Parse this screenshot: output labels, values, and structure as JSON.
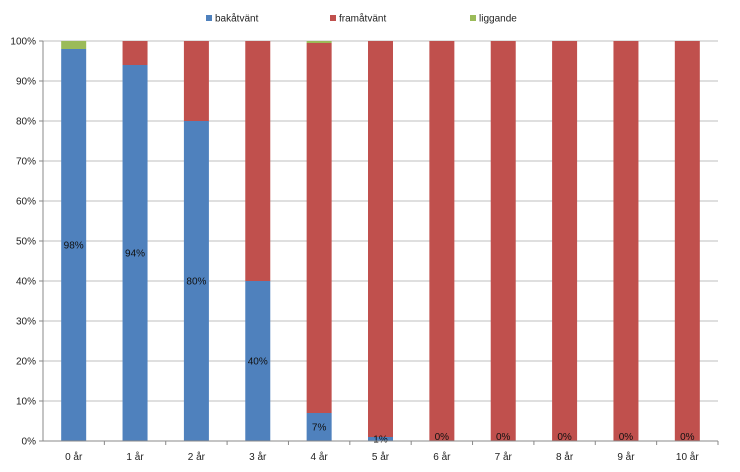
{
  "chart_data": {
    "type": "bar",
    "stacked": "percent",
    "categories": [
      "0 år",
      "1 år",
      "2 år",
      "3 år",
      "4 år",
      "5 år",
      "6 år",
      "7 år",
      "8 år",
      "9 år",
      "10 år"
    ],
    "series": [
      {
        "name": "bakåtvänt",
        "color": "#4f81bd",
        "values": [
          98,
          94,
          80,
          40,
          7,
          1,
          0,
          0,
          0,
          0,
          0
        ]
      },
      {
        "name": "framåtvänt",
        "color": "#c0504d",
        "values": [
          0,
          6,
          20,
          60,
          92.5,
          99,
          100,
          100,
          100,
          100,
          100
        ]
      },
      {
        "name": "liggande",
        "color": "#9bbb59",
        "values": [
          2,
          0,
          0,
          0,
          0.5,
          0,
          0,
          0,
          0,
          0,
          0
        ]
      }
    ],
    "data_labels": [
      "98%",
      "94%",
      "80%",
      "40%",
      "7%",
      "1%",
      "0%",
      "0%",
      "0%",
      "0%",
      "0%"
    ],
    "y_ticks": [
      "0%",
      "10%",
      "20%",
      "30%",
      "40%",
      "50%",
      "60%",
      "70%",
      "80%",
      "90%",
      "100%"
    ],
    "ylim": [
      0,
      100
    ],
    "grid": true,
    "legend_position": "top"
  }
}
